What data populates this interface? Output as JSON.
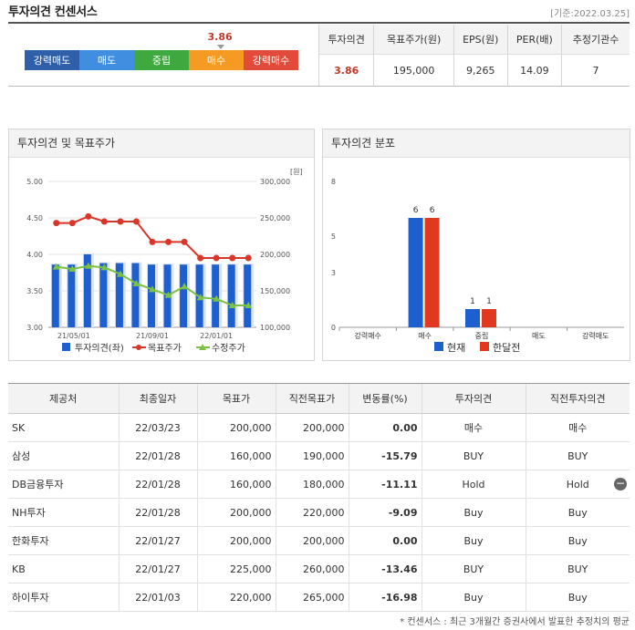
{
  "header": {
    "title": "투자의견 컨센서스",
    "date": "[기준:2022.03.25]"
  },
  "opinion_bar": {
    "segments": [
      {
        "label": "강력매도",
        "color": "#2f5fa8"
      },
      {
        "label": "매도",
        "color": "#3f8ee0"
      },
      {
        "label": "중립",
        "color": "#3fa83f"
      },
      {
        "label": "매수",
        "color": "#f59a23"
      },
      {
        "label": "강력매수",
        "color": "#e24b3a"
      }
    ],
    "value": "3.86",
    "value_fraction": 0.715
  },
  "summary": {
    "headers": [
      "투자의견",
      "목표주가(원)",
      "EPS(원)",
      "PER(배)",
      "추정기관수"
    ],
    "values": [
      "3.86",
      "195,000",
      "9,265",
      "14.09",
      "7"
    ]
  },
  "panel_left": {
    "title": "투자의견 및 목표주가",
    "unit": "[원]"
  },
  "panel_right": {
    "title": "투자의견 분포"
  },
  "chart_data": [
    {
      "type": "bar+line",
      "title": "",
      "x": [
        "21/03",
        "21/04",
        "21/05",
        "21/06",
        "21/07",
        "21/08",
        "21/09",
        "21/10",
        "21/11",
        "21/12",
        "22/01",
        "22/02",
        "22/03"
      ],
      "xtick_labels": [
        "21/05/01",
        "21/09/01",
        "22/01/01"
      ],
      "y_left": {
        "ylim": [
          3.0,
          5.0
        ],
        "ticks": [
          "5.00",
          "4.50",
          "4.00",
          "3.50",
          "3.00"
        ]
      },
      "y_right": {
        "ylim": [
          100000,
          300000
        ],
        "ticks": [
          "300,000",
          "250,000",
          "200,000",
          "150,000",
          "100,000"
        ]
      },
      "series": [
        {
          "name": "투자의견(좌)",
          "axis": "left",
          "kind": "bar",
          "color": "#1e5fd0",
          "values": [
            3.86,
            3.86,
            4.0,
            3.88,
            3.88,
            3.88,
            3.86,
            3.86,
            3.86,
            3.86,
            3.86,
            3.86,
            3.86
          ]
        },
        {
          "name": "목표주가",
          "axis": "right",
          "kind": "line",
          "color": "#d9362a",
          "values": [
            243000,
            243000,
            252000,
            245000,
            245000,
            245000,
            217000,
            217000,
            217000,
            195000,
            195000,
            195000,
            195000
          ]
        },
        {
          "name": "수정주가",
          "axis": "right",
          "kind": "line",
          "color": "#7cc242",
          "values": [
            183000,
            180000,
            184000,
            182000,
            173000,
            160000,
            152000,
            144000,
            156000,
            141000,
            139000,
            130000,
            130000
          ]
        }
      ],
      "legend": "bottom"
    },
    {
      "type": "bar",
      "title": "",
      "categories": [
        "강력매수",
        "매수",
        "중립",
        "매도",
        "강력매도"
      ],
      "ylim": [
        0,
        8
      ],
      "yticks": [
        "8",
        "5",
        "3",
        "0"
      ],
      "series": [
        {
          "name": "현재",
          "color": "#1e5fd0",
          "values": [
            0,
            6,
            1,
            0,
            0
          ]
        },
        {
          "name": "한달전",
          "color": "#e0391f",
          "values": [
            0,
            6,
            1,
            0,
            0
          ]
        }
      ],
      "legend": "bottom"
    }
  ],
  "table": {
    "headers": [
      "제공처",
      "최종일자",
      "목표가",
      "직전목표가",
      "변동률(%)",
      "투자의견",
      "직전투자의견"
    ],
    "rows": [
      {
        "source": "SK",
        "date": "22/03/23",
        "target": "200,000",
        "prev_target": "200,000",
        "change": "0.00",
        "opinion": "매수",
        "prev_opinion": "매수"
      },
      {
        "source": "삼성",
        "date": "22/01/28",
        "target": "160,000",
        "prev_target": "190,000",
        "change": "-15.79",
        "opinion": "BUY",
        "prev_opinion": "BUY"
      },
      {
        "source": "DB금융투자",
        "date": "22/01/28",
        "target": "160,000",
        "prev_target": "180,000",
        "change": "-11.11",
        "opinion": "Hold",
        "prev_opinion": "Hold"
      },
      {
        "source": "NH투자",
        "date": "22/01/28",
        "target": "200,000",
        "prev_target": "220,000",
        "change": "-9.09",
        "opinion": "Buy",
        "prev_opinion": "Buy"
      },
      {
        "source": "한화투자",
        "date": "22/01/27",
        "target": "200,000",
        "prev_target": "200,000",
        "change": "0.00",
        "opinion": "Buy",
        "prev_opinion": "Buy"
      },
      {
        "source": "KB",
        "date": "22/01/27",
        "target": "225,000",
        "prev_target": "260,000",
        "change": "-13.46",
        "opinion": "BUY",
        "prev_opinion": "BUY"
      },
      {
        "source": "하이투자",
        "date": "22/01/03",
        "target": "220,000",
        "prev_target": "265,000",
        "change": "-16.98",
        "opinion": "Buy",
        "prev_opinion": "Buy"
      }
    ],
    "remove_icon": "minus-circle-icon"
  },
  "footnote": "* 컨센서스 : 최근 3개월간 증권사에서 발표한 추정치의 평균"
}
